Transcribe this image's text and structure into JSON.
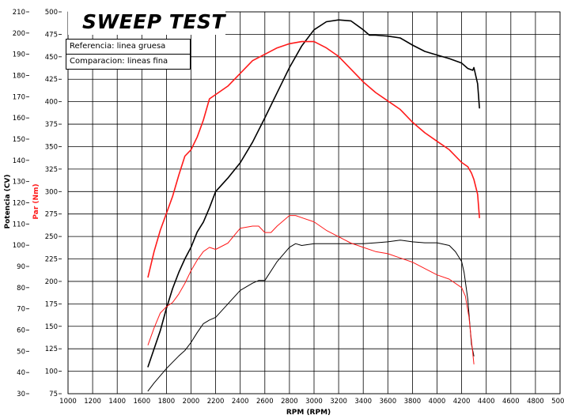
{
  "chart_data": {
    "type": "line",
    "title": "SWEEP TEST",
    "xlabel": "RPM (RPM)",
    "ylabel_left": "Potencia (CV)",
    "ylabel_left2": "Par (Nm)",
    "legend": [
      "Referencia: linea gruesa",
      "Comparacion: lineas fina"
    ],
    "xlim": [
      1000,
      5000
    ],
    "x_ticks": [
      "1000",
      "1200",
      "1400",
      "1600",
      "1800",
      "2000",
      "2200",
      "2400",
      "2600",
      "2800",
      "3000",
      "3200",
      "3400",
      "3600",
      "3800",
      "4000",
      "4200",
      "4400",
      "4600",
      "4800",
      "5000"
    ],
    "power_axis": {
      "lim": [
        30,
        210
      ],
      "ticks": [
        "30",
        "40",
        "50",
        "60",
        "70",
        "80",
        "90",
        "100",
        "110",
        "120",
        "130",
        "140",
        "150",
        "160",
        "170",
        "180",
        "190",
        "200",
        "210"
      ]
    },
    "torque_axis": {
      "lim": [
        75,
        500
      ],
      "ticks": [
        "75",
        "100",
        "125",
        "150",
        "175",
        "200",
        "225",
        "250",
        "275",
        "300",
        "325",
        "350",
        "375",
        "400",
        "425",
        "450",
        "475",
        "500"
      ]
    },
    "grid": true,
    "series": [
      {
        "name": "Referencia: linea gruesa",
        "quantity": "Par (Nm)",
        "axis": "torque",
        "color": "#000000",
        "width": 1.6,
        "x": [
          1650,
          1700,
          1750,
          1800,
          1850,
          1900,
          1950,
          2000,
          2050,
          2100,
          2150,
          2200,
          2300,
          2400,
          2500,
          2600,
          2700,
          2800,
          2900,
          3000,
          3100,
          3200,
          3300,
          3400,
          3450,
          3500,
          3600,
          3700,
          3800,
          3900,
          4000,
          4100,
          4200,
          4250,
          4290,
          4300,
          4330,
          4345
        ],
        "y": [
          105,
          125,
          145,
          170,
          192,
          210,
          225,
          238,
          255,
          266,
          282,
          300,
          315,
          332,
          355,
          382,
          410,
          438,
          462,
          480,
          489,
          491,
          490,
          480,
          474,
          474,
          473,
          471,
          463,
          456,
          452,
          448,
          443,
          437,
          435,
          438,
          420,
          393
        ]
      },
      {
        "name": "Referencia: linea gruesa",
        "quantity": "Potencia (CV)",
        "axis": "power",
        "color": "#ff1a1a",
        "width": 1.6,
        "x": [
          1650,
          1700,
          1750,
          1800,
          1850,
          1900,
          1950,
          2000,
          2050,
          2100,
          2150,
          2200,
          2300,
          2400,
          2500,
          2600,
          2700,
          2800,
          2900,
          3000,
          3100,
          3200,
          3300,
          3400,
          3500,
          3600,
          3700,
          3800,
          3900,
          4000,
          4100,
          4200,
          4250,
          4280,
          4300,
          4330,
          4345
        ],
        "y": [
          85,
          97,
          107,
          115,
          123,
          133,
          142,
          145,
          151,
          159,
          169,
          171,
          175,
          181,
          187,
          190,
          193,
          195,
          196,
          196,
          193,
          189,
          183,
          177,
          172,
          168,
          164,
          158,
          153,
          149,
          145,
          139,
          137,
          134,
          131,
          124,
          113
        ]
      },
      {
        "name": "Comparacion: lineas fina",
        "quantity": "Par (Nm)",
        "axis": "torque",
        "color": "#000000",
        "width": 1.0,
        "x": [
          1650,
          1700,
          1750,
          1800,
          1850,
          1900,
          1950,
          2000,
          2050,
          2100,
          2150,
          2200,
          2300,
          2400,
          2500,
          2550,
          2600,
          2700,
          2800,
          2850,
          2900,
          3000,
          3100,
          3200,
          3300,
          3400,
          3500,
          3600,
          3700,
          3800,
          3900,
          4000,
          4100,
          4150,
          4200,
          4220,
          4250,
          4280,
          4300
        ],
        "y": [
          78,
          87,
          95,
          103,
          110,
          117,
          123,
          132,
          143,
          153,
          157,
          160,
          175,
          190,
          198,
          201,
          201,
          222,
          238,
          242,
          240,
          242,
          242,
          242,
          242,
          242,
          243,
          244,
          246,
          244,
          243,
          243,
          240,
          233,
          222,
          210,
          180,
          130,
          117
        ]
      },
      {
        "name": "Comparacion: lineas fina",
        "quantity": "Potencia (CV)",
        "axis": "power",
        "color": "#ff1a1a",
        "width": 1.0,
        "x": [
          1650,
          1700,
          1750,
          1800,
          1850,
          1900,
          1950,
          2000,
          2050,
          2100,
          2150,
          2200,
          2300,
          2400,
          2500,
          2550,
          2600,
          2650,
          2700,
          2800,
          2850,
          2900,
          3000,
          3100,
          3200,
          3300,
          3400,
          3500,
          3600,
          3700,
          3800,
          3900,
          4000,
          4100,
          4200,
          4230,
          4260,
          4280,
          4300
        ],
        "y": [
          53,
          61,
          68,
          71,
          73,
          77,
          82,
          88,
          93,
          97,
          99,
          98,
          101,
          108,
          109,
          109,
          106,
          106,
          109,
          114,
          114,
          113,
          111,
          107,
          104,
          101,
          99,
          97,
          96,
          94,
          92,
          89,
          86,
          84,
          80,
          76,
          66,
          55,
          44
        ]
      }
    ]
  }
}
